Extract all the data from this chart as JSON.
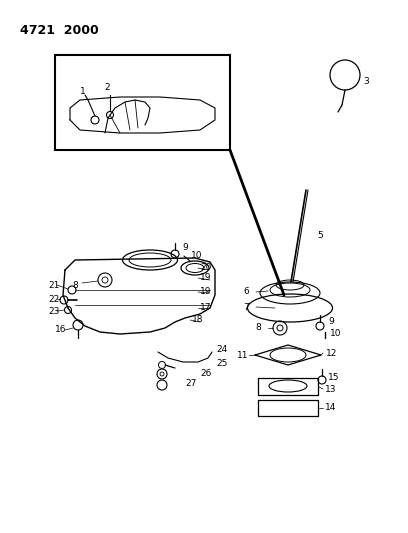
{
  "title_text": "4721  2000",
  "bg_color": "#ffffff",
  "line_color": "#000000",
  "fig_width": 4.08,
  "fig_height": 5.33,
  "dpi": 100
}
